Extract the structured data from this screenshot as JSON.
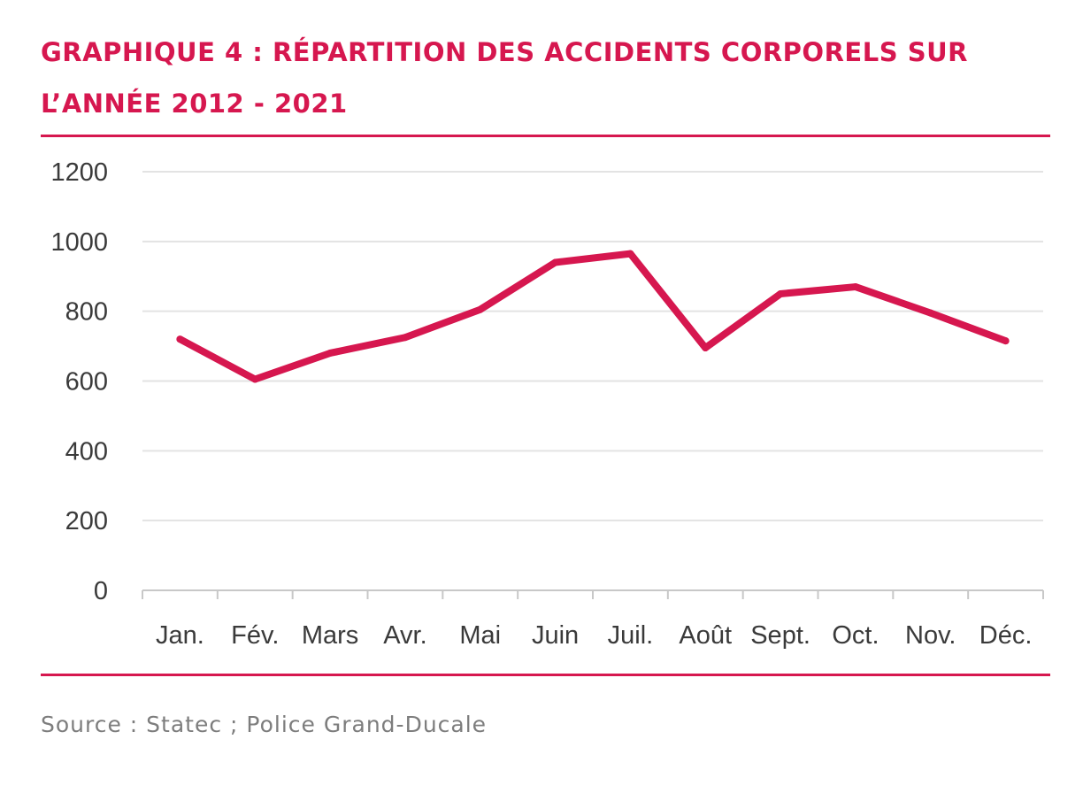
{
  "chart_data": {
    "type": "line",
    "title_line1": "GRAPHIQUE 4 : RÉPARTITION DES ACCIDENTS CORPORELS SUR",
    "title_line2": "L’ANNÉE 2012 - 2021",
    "categories": [
      "Jan.",
      "Fév.",
      "Mars",
      "Avr.",
      "Mai",
      "Juin",
      "Juil.",
      "Août",
      "Sept.",
      "Oct.",
      "Nov.",
      "Déc."
    ],
    "series": [
      {
        "values": [
          720,
          605,
          680,
          725,
          805,
          940,
          965,
          695,
          850,
          870,
          795,
          715
        ],
        "color": "#d6174f"
      }
    ],
    "yticks": [
      "0",
      "200",
      "400",
      "600",
      "800",
      "1000",
      "1200"
    ],
    "ylim": [
      0,
      1200
    ],
    "xlabel": "",
    "ylabel": "",
    "grid": true,
    "legend": "none",
    "source": "Source : Statec ; Police Grand-Ducale"
  },
  "colors": {
    "accent": "#d6174f",
    "grid": "#e3e3e3",
    "axis": "#c8c8c8",
    "text": "#3a3a3a",
    "source": "#7d7d7d"
  }
}
